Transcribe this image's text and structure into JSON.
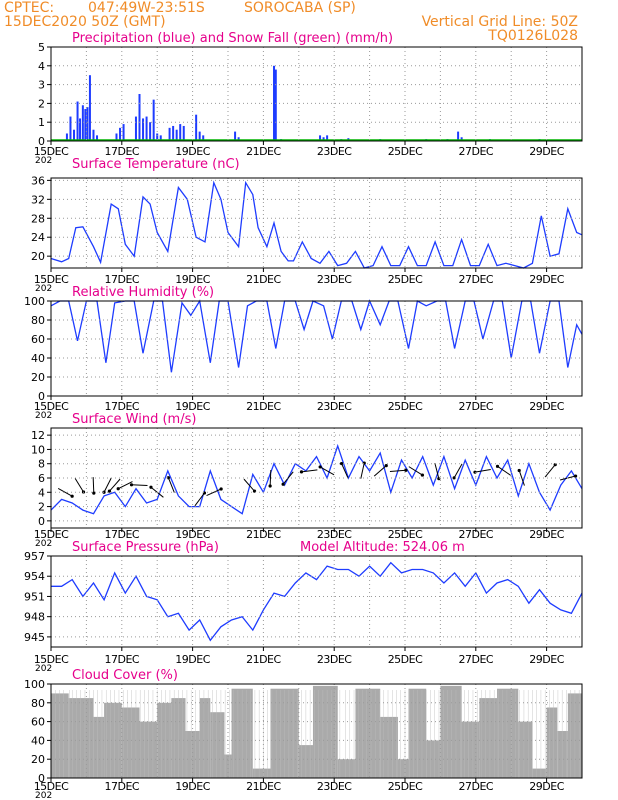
{
  "header": {
    "source": "CPTEC:",
    "coords": "047:49W-23:51S",
    "station": "SOROCABA (SP)",
    "run": "15DEC2020 50Z (GMT)",
    "grid_note": "Vertical Grid Line: 50Z",
    "code": "TQ0126L028"
  },
  "colors": {
    "precip": "#1e3cff",
    "snow": "#00b400",
    "line": "#1e3cff",
    "cloud": "#aaaaaa",
    "grid": "#9a9a9a",
    "title": "#e6008c",
    "header": "#f08c28"
  },
  "x_axis": {
    "tick_labels": [
      "15DEC",
      "17DEC",
      "19DEC",
      "21DEC",
      "23DEC",
      "25DEC",
      "27DEC",
      "29DEC"
    ],
    "year_label": "202",
    "days": 15
  },
  "chart_data": [
    {
      "type": "bar",
      "title": "Precipitation (blue) and Snow Fall (green) (mm/h)",
      "ylim": [
        0,
        5
      ],
      "y_ticks": [
        0,
        1,
        2,
        3,
        4,
        5
      ],
      "series": [
        {
          "name": "Precipitation",
          "color": "#1e3cff",
          "points": [
            [
              0.45,
              0.4
            ],
            [
              0.55,
              1.3
            ],
            [
              0.65,
              0.6
            ],
            [
              0.75,
              2.1
            ],
            [
              0.82,
              1.2
            ],
            [
              0.9,
              1.9
            ],
            [
              0.97,
              1.7
            ],
            [
              1.03,
              1.8
            ],
            [
              1.1,
              3.5
            ],
            [
              1.2,
              0.6
            ],
            [
              1.3,
              0.3
            ],
            [
              1.85,
              0.4
            ],
            [
              1.95,
              0.7
            ],
            [
              2.05,
              0.9
            ],
            [
              2.4,
              1.3
            ],
            [
              2.5,
              2.5
            ],
            [
              2.6,
              1.2
            ],
            [
              2.7,
              1.3
            ],
            [
              2.8,
              1.0
            ],
            [
              2.9,
              2.2
            ],
            [
              3.0,
              0.4
            ],
            [
              3.1,
              0.3
            ],
            [
              3.35,
              0.7
            ],
            [
              3.45,
              0.8
            ],
            [
              3.55,
              0.6
            ],
            [
              3.65,
              0.9
            ],
            [
              3.75,
              0.8
            ],
            [
              4.1,
              1.4
            ],
            [
              4.2,
              0.5
            ],
            [
              4.3,
              0.3
            ],
            [
              5.2,
              0.5
            ],
            [
              5.3,
              0.2
            ],
            [
              6.3,
              4.0
            ],
            [
              6.35,
              3.8
            ],
            [
              6.5,
              0.1
            ],
            [
              7.6,
              0.3
            ],
            [
              7.7,
              0.2
            ],
            [
              7.8,
              0.3
            ],
            [
              8.2,
              0.1
            ],
            [
              8.4,
              0.15
            ],
            [
              9.3,
              0.1
            ],
            [
              10.6,
              0.1
            ],
            [
              11.2,
              0.1
            ],
            [
              11.5,
              0.5
            ],
            [
              11.6,
              0.2
            ],
            [
              12.4,
              0.1
            ],
            [
              13.8,
              0.1
            ]
          ]
        },
        {
          "name": "Snow Fall",
          "color": "#00b400",
          "points": [
            [
              7.0,
              0.05
            ],
            [
              9.0,
              0.05
            ],
            [
              11.0,
              0.05
            ],
            [
              13.5,
              0.05
            ]
          ]
        }
      ]
    },
    {
      "type": "line",
      "title": "Surface Temperature (nC)",
      "ylim": [
        17.5,
        36.5
      ],
      "y_ticks": [
        20,
        24,
        28,
        32,
        36
      ],
      "x": [
        0,
        0.3,
        0.5,
        0.7,
        0.9,
        1.2,
        1.4,
        1.7,
        1.9,
        2.1,
        2.35,
        2.6,
        2.8,
        3.0,
        3.3,
        3.6,
        3.85,
        4.1,
        4.35,
        4.6,
        4.8,
        5.0,
        5.3,
        5.5,
        5.7,
        5.85,
        6.1,
        6.3,
        6.5,
        6.7,
        6.85,
        7.1,
        7.35,
        7.6,
        7.85,
        8.1,
        8.35,
        8.6,
        8.85,
        9.1,
        9.35,
        9.6,
        9.85,
        10.1,
        10.35,
        10.6,
        10.85,
        11.1,
        11.35,
        11.6,
        11.85,
        12.1,
        12.35,
        12.6,
        12.85,
        13.1,
        13.35,
        13.6,
        13.85,
        14.1,
        14.35,
        14.6,
        14.85,
        15.0
      ],
      "values": [
        19.5,
        18.8,
        19.5,
        26.0,
        26.2,
        22.0,
        18.7,
        31.0,
        30.0,
        22.5,
        20.0,
        32.5,
        31.0,
        25.0,
        21.0,
        34.5,
        32.0,
        24.0,
        23.0,
        35.5,
        32.0,
        25.0,
        22.0,
        35.5,
        33.0,
        26.0,
        22.0,
        27.0,
        21.0,
        19.0,
        19.0,
        23.0,
        19.5,
        18.5,
        21.0,
        18.0,
        18.5,
        21.0,
        17.5,
        18.0,
        22.0,
        18.0,
        18.0,
        22.0,
        18.0,
        18.0,
        23.0,
        18.0,
        18.0,
        23.5,
        18.0,
        18.0,
        22.5,
        18.0,
        18.5,
        18.0,
        17.5,
        18.5,
        28.5,
        20.0,
        20.5,
        30.0,
        25.0,
        24.5
      ]
    },
    {
      "type": "line",
      "title": "Relative Humidity (%)",
      "ylim": [
        0,
        100
      ],
      "y_ticks": [
        0,
        20,
        40,
        60,
        80,
        100
      ],
      "x": [
        0,
        0.25,
        0.5,
        0.75,
        1.0,
        1.3,
        1.55,
        1.8,
        2.1,
        2.35,
        2.6,
        2.9,
        3.15,
        3.4,
        3.7,
        3.95,
        4.2,
        4.5,
        4.75,
        5.0,
        5.3,
        5.55,
        5.8,
        6.1,
        6.35,
        6.6,
        6.9,
        7.15,
        7.4,
        7.7,
        7.95,
        8.2,
        8.5,
        8.75,
        9.0,
        9.3,
        9.55,
        9.8,
        10.1,
        10.35,
        10.6,
        10.9,
        11.15,
        11.4,
        11.7,
        11.95,
        12.2,
        12.5,
        12.75,
        13.0,
        13.3,
        13.55,
        13.8,
        14.1,
        14.35,
        14.6,
        14.85,
        15.0
      ],
      "values": [
        95,
        100,
        100,
        58,
        100,
        100,
        35,
        98,
        100,
        100,
        45,
        100,
        100,
        25,
        98,
        85,
        100,
        35,
        100,
        100,
        30,
        95,
        100,
        100,
        50,
        100,
        100,
        70,
        100,
        95,
        60,
        100,
        100,
        70,
        100,
        75,
        100,
        100,
        50,
        100,
        95,
        100,
        100,
        50,
        100,
        100,
        60,
        100,
        100,
        40,
        100,
        100,
        45,
        100,
        100,
        30,
        75,
        65
      ]
    },
    {
      "type": "line",
      "title": "Surface Wind (m/s)",
      "ylim": [
        -1,
        13
      ],
      "y_ticks": [
        0,
        2,
        4,
        6,
        8,
        10,
        12
      ],
      "x": [
        0,
        0.3,
        0.6,
        0.9,
        1.2,
        1.5,
        1.8,
        2.1,
        2.4,
        2.7,
        3.0,
        3.3,
        3.6,
        3.9,
        4.2,
        4.5,
        4.8,
        5.1,
        5.4,
        5.7,
        6.0,
        6.3,
        6.6,
        6.9,
        7.2,
        7.5,
        7.8,
        8.1,
        8.4,
        8.7,
        9.0,
        9.3,
        9.6,
        9.9,
        10.2,
        10.5,
        10.8,
        11.1,
        11.4,
        11.7,
        12.0,
        12.3,
        12.6,
        12.9,
        13.2,
        13.5,
        13.8,
        14.1,
        14.4,
        14.7,
        15.0
      ],
      "values": [
        1.5,
        3.0,
        2.5,
        1.5,
        1.0,
        3.5,
        4.0,
        2.0,
        4.5,
        2.5,
        3.0,
        7.0,
        3.5,
        2.0,
        2.0,
        7.0,
        3.0,
        2.0,
        1.0,
        6.5,
        4.0,
        8.0,
        5.0,
        8.0,
        7.0,
        9.0,
        6.0,
        10.5,
        6.0,
        9.0,
        7.0,
        9.5,
        4.0,
        8.5,
        6.0,
        9.0,
        5.0,
        9.0,
        4.5,
        8.5,
        5.0,
        9.0,
        6.0,
        8.5,
        3.5,
        8.0,
        4.0,
        1.5,
        5.0,
        7.0,
        4.5
      ],
      "arrows": [
        [
          0.4,
          4
        ],
        [
          0.8,
          5
        ],
        [
          1.2,
          5
        ],
        [
          1.6,
          5
        ],
        [
          1.8,
          5
        ],
        [
          2.1,
          5
        ],
        [
          2.5,
          5
        ],
        [
          3.0,
          4
        ],
        [
          3.4,
          5
        ],
        [
          4.2,
          3
        ],
        [
          4.6,
          4
        ],
        [
          5.6,
          5
        ],
        [
          6.2,
          6
        ],
        [
          6.7,
          6
        ],
        [
          7.3,
          7
        ],
        [
          7.8,
          7
        ],
        [
          8.3,
          7
        ],
        [
          8.8,
          7
        ],
        [
          9.3,
          7
        ],
        [
          9.8,
          7
        ],
        [
          10.3,
          7
        ],
        [
          10.9,
          7
        ],
        [
          11.5,
          7
        ],
        [
          12.2,
          7
        ],
        [
          12.8,
          7
        ],
        [
          13.3,
          6
        ],
        [
          14.1,
          7
        ],
        [
          14.6,
          6
        ]
      ]
    },
    {
      "type": "line",
      "title": "Surface Pressure (hPa)",
      "annotation": "Model Altitude: 524.06 m",
      "ylim": [
        943.5,
        957
      ],
      "y_ticks": [
        945,
        948,
        951,
        954,
        957
      ],
      "x": [
        0,
        0.3,
        0.6,
        0.9,
        1.2,
        1.5,
        1.8,
        2.1,
        2.4,
        2.7,
        3.0,
        3.3,
        3.6,
        3.9,
        4.2,
        4.5,
        4.8,
        5.1,
        5.4,
        5.7,
        6.0,
        6.3,
        6.6,
        6.9,
        7.2,
        7.5,
        7.8,
        8.1,
        8.4,
        8.7,
        9.0,
        9.3,
        9.6,
        9.9,
        10.2,
        10.5,
        10.8,
        11.1,
        11.4,
        11.7,
        12.0,
        12.3,
        12.6,
        12.9,
        13.2,
        13.5,
        13.8,
        14.1,
        14.4,
        14.7,
        15.0
      ],
      "values": [
        952.5,
        952.5,
        953.5,
        951.0,
        953.0,
        950.5,
        954.5,
        951.5,
        954.0,
        951.0,
        950.5,
        948.0,
        948.5,
        946.0,
        947.5,
        944.5,
        946.5,
        947.5,
        948.0,
        946.0,
        949.0,
        951.5,
        951.0,
        953.0,
        954.5,
        953.5,
        955.5,
        955.0,
        955.0,
        954.0,
        955.5,
        954.0,
        956.0,
        954.5,
        955.0,
        955.0,
        954.5,
        953.0,
        954.5,
        952.5,
        954.5,
        951.5,
        953.0,
        953.5,
        952.5,
        950.0,
        952.0,
        950.0,
        949.0,
        948.5,
        951.5
      ]
    },
    {
      "type": "bar",
      "title": "Cloud Cover (%)",
      "ylim": [
        0,
        100
      ],
      "y_ticks": [
        0,
        20,
        40,
        60,
        80,
        100
      ],
      "segments": [
        [
          0,
          0.5,
          90
        ],
        [
          0.5,
          1.2,
          85
        ],
        [
          1.2,
          1.5,
          65
        ],
        [
          1.5,
          2.0,
          80
        ],
        [
          2.0,
          2.5,
          75
        ],
        [
          2.5,
          3.0,
          60
        ],
        [
          3.0,
          3.4,
          80
        ],
        [
          3.4,
          3.8,
          85
        ],
        [
          3.8,
          4.2,
          50
        ],
        [
          4.2,
          4.5,
          85
        ],
        [
          4.5,
          4.9,
          70
        ],
        [
          4.9,
          5.1,
          25
        ],
        [
          5.1,
          5.7,
          95
        ],
        [
          5.7,
          6.2,
          10
        ],
        [
          6.2,
          7.0,
          95
        ],
        [
          7.0,
          7.4,
          35
        ],
        [
          7.4,
          8.1,
          98
        ],
        [
          8.1,
          8.6,
          20
        ],
        [
          8.6,
          9.3,
          95
        ],
        [
          9.3,
          9.8,
          65
        ],
        [
          9.8,
          10.1,
          20
        ],
        [
          10.1,
          10.6,
          95
        ],
        [
          10.6,
          11.0,
          40
        ],
        [
          11.0,
          11.6,
          98
        ],
        [
          11.6,
          12.1,
          60
        ],
        [
          12.1,
          12.6,
          85
        ],
        [
          12.6,
          13.2,
          95
        ],
        [
          13.2,
          13.6,
          60
        ],
        [
          13.6,
          14.0,
          10
        ],
        [
          14.0,
          14.3,
          75
        ],
        [
          14.3,
          14.6,
          50
        ],
        [
          14.6,
          15.0,
          90
        ]
      ]
    }
  ]
}
